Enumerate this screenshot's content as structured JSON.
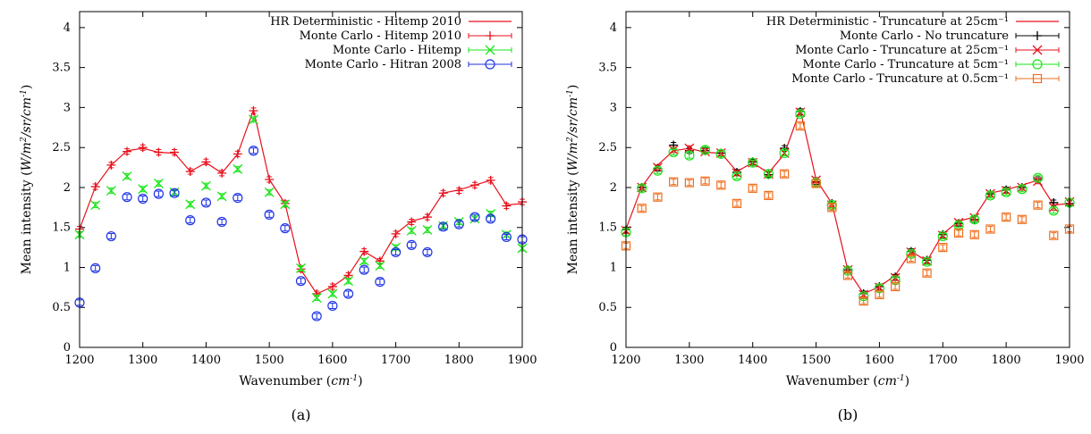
{
  "colors": {
    "red": "#e8101c",
    "green": "#19e619",
    "blue": "#1f33e6",
    "black": "#000000",
    "orange": "#ef6d1c"
  },
  "chart_data": [
    {
      "type": "scatter",
      "caption": "(a)",
      "xlabel": "Wavenumber (cm⁻¹)",
      "ylabel": "Mean intensity (W/m²/sr/cm⁻¹)",
      "xlim": [
        1200,
        1900
      ],
      "ylim": [
        0,
        4.2
      ],
      "xticks": [
        1200,
        1300,
        1400,
        1500,
        1600,
        1700,
        1800,
        1900
      ],
      "yticks": [
        0,
        0.5,
        1,
        1.5,
        2,
        2.5,
        3,
        3.5,
        4
      ],
      "x": [
        1200,
        1225,
        1250,
        1275,
        1300,
        1325,
        1350,
        1375,
        1400,
        1425,
        1450,
        1475,
        1500,
        1525,
        1550,
        1575,
        1600,
        1625,
        1650,
        1675,
        1700,
        1725,
        1750,
        1775,
        1800,
        1825,
        1850,
        1875,
        1900
      ],
      "legend_position": "top-right",
      "series": [
        {
          "name": "HR Deterministic - Hitemp 2010",
          "style": "line",
          "color": "red",
          "values": [
            1.48,
            2.01,
            2.28,
            2.46,
            2.49,
            2.44,
            2.43,
            2.2,
            2.31,
            2.18,
            2.42,
            2.97,
            2.1,
            1.8,
            0.97,
            0.67,
            0.76,
            0.9,
            1.2,
            1.08,
            1.42,
            1.58,
            1.63,
            1.93,
            1.97,
            2.03,
            2.09,
            1.78,
            1.8
          ]
        },
        {
          "name": "Monte Carlo - Hitemp 2010",
          "style": "plus",
          "color": "red",
          "values": [
            1.48,
            2.01,
            2.28,
            2.45,
            2.5,
            2.44,
            2.44,
            2.2,
            2.32,
            2.18,
            2.42,
            2.96,
            2.1,
            1.8,
            0.98,
            0.67,
            0.76,
            0.9,
            1.2,
            1.08,
            1.42,
            1.57,
            1.63,
            1.93,
            1.96,
            2.03,
            2.09,
            1.77,
            1.82
          ]
        },
        {
          "name": "Monte Carlo - Hitemp",
          "style": "cross",
          "color": "green",
          "values": [
            1.41,
            1.78,
            1.96,
            2.14,
            1.98,
            2.05,
            1.94,
            1.79,
            2.02,
            1.89,
            2.23,
            2.85,
            1.94,
            1.79,
            0.99,
            0.62,
            0.67,
            0.83,
            1.08,
            1.02,
            1.25,
            1.46,
            1.47,
            1.52,
            1.57,
            1.61,
            1.67,
            1.41,
            1.24
          ]
        },
        {
          "name": "Monte Carlo - Hitran 2008",
          "style": "circle",
          "color": "blue",
          "values": [
            0.56,
            0.99,
            1.39,
            1.88,
            1.86,
            1.92,
            1.93,
            1.59,
            1.81,
            1.57,
            1.87,
            2.46,
            1.66,
            1.49,
            0.83,
            0.39,
            0.52,
            0.67,
            0.97,
            0.82,
            1.19,
            1.28,
            1.19,
            1.51,
            1.54,
            1.63,
            1.61,
            1.38,
            1.35
          ]
        }
      ]
    },
    {
      "type": "scatter",
      "caption": "(b)",
      "xlabel": "Wavenumber (cm⁻¹)",
      "ylabel": "Mean intensity (W/m²/sr/cm⁻¹)",
      "xlim": [
        1200,
        1900
      ],
      "ylim": [
        0,
        4.2
      ],
      "xticks": [
        1200,
        1300,
        1400,
        1500,
        1600,
        1700,
        1800,
        1900
      ],
      "yticks": [
        0,
        0.5,
        1,
        1.5,
        2,
        2.5,
        3,
        3.5,
        4
      ],
      "x": [
        1200,
        1225,
        1250,
        1275,
        1300,
        1325,
        1350,
        1375,
        1400,
        1425,
        1450,
        1475,
        1500,
        1525,
        1550,
        1575,
        1600,
        1625,
        1650,
        1675,
        1700,
        1725,
        1750,
        1775,
        1800,
        1825,
        1850,
        1875,
        1900
      ],
      "legend_position": "top-right",
      "series": [
        {
          "name": "HR Deterministic - Truncature at 25cm⁻¹",
          "style": "line",
          "color": "red",
          "values": [
            1.48,
            2.01,
            2.28,
            2.46,
            2.49,
            2.44,
            2.43,
            2.2,
            2.31,
            2.18,
            2.42,
            2.97,
            2.1,
            1.8,
            0.97,
            0.67,
            0.76,
            0.9,
            1.2,
            1.08,
            1.42,
            1.58,
            1.63,
            1.93,
            1.97,
            2.03,
            2.09,
            1.78,
            1.8
          ]
        },
        {
          "name": "Monte Carlo - No truncature",
          "style": "plus",
          "color": "black",
          "values": [
            1.47,
            2.0,
            2.24,
            2.53,
            2.46,
            2.46,
            2.43,
            2.19,
            2.32,
            2.16,
            2.49,
            2.95,
            2.07,
            1.8,
            0.97,
            0.67,
            0.76,
            0.88,
            1.2,
            1.09,
            1.41,
            1.55,
            1.6,
            1.92,
            1.97,
            2.0,
            2.1,
            1.81,
            1.8
          ]
        },
        {
          "name": "Monte Carlo - Truncature at 25cm⁻¹",
          "style": "cross",
          "color": "red",
          "values": [
            1.46,
            2.0,
            2.25,
            2.47,
            2.49,
            2.45,
            2.43,
            2.18,
            2.31,
            2.17,
            2.43,
            2.94,
            2.09,
            1.78,
            0.97,
            0.66,
            0.75,
            0.87,
            1.19,
            1.08,
            1.4,
            1.56,
            1.62,
            1.92,
            1.96,
            2.0,
            2.08,
            1.75,
            1.82
          ]
        },
        {
          "name": "Monte Carlo - Truncature at 5cm⁻¹",
          "style": "circle",
          "color": "green",
          "values": [
            1.44,
            1.99,
            2.21,
            2.44,
            2.4,
            2.47,
            2.42,
            2.14,
            2.31,
            2.17,
            2.43,
            2.92,
            2.06,
            1.78,
            0.96,
            0.64,
            0.74,
            0.84,
            1.17,
            1.07,
            1.39,
            1.53,
            1.6,
            1.9,
            1.94,
            1.98,
            2.12,
            1.71,
            1.81
          ]
        },
        {
          "name": "Monte Carlo - Truncature at 0.5cm⁻¹",
          "style": "square",
          "color": "orange",
          "values": [
            1.27,
            1.74,
            1.88,
            2.07,
            2.06,
            2.08,
            2.03,
            1.8,
            1.99,
            1.9,
            2.17,
            2.77,
            2.05,
            1.75,
            0.9,
            0.58,
            0.66,
            0.76,
            1.11,
            0.93,
            1.25,
            1.43,
            1.41,
            1.48,
            1.63,
            1.6,
            1.78,
            1.4,
            1.48
          ]
        }
      ]
    }
  ]
}
